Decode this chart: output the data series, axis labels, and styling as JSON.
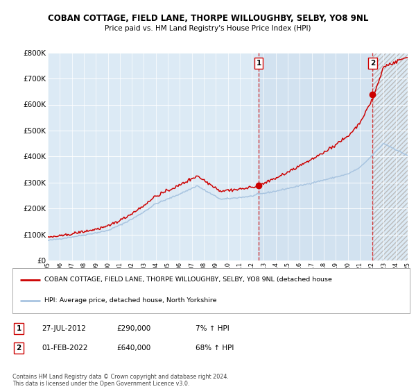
{
  "title": "COBAN COTTAGE, FIELD LANE, THORPE WILLOUGHBY, SELBY, YO8 9NL",
  "subtitle": "Price paid vs. HM Land Registry's House Price Index (HPI)",
  "x_start_year": 1995,
  "x_end_year": 2025,
  "y_min": 0,
  "y_max": 800000,
  "y_ticks": [
    0,
    100000,
    200000,
    300000,
    400000,
    500000,
    600000,
    700000,
    800000
  ],
  "y_tick_labels": [
    "£0",
    "£100K",
    "£200K",
    "£300K",
    "£400K",
    "£500K",
    "£600K",
    "£700K",
    "£800K"
  ],
  "sale1_date": "27-JUL-2012",
  "sale1_price": 290000,
  "sale1_hpi_pct": "7%",
  "sale1_x": 2012.57,
  "sale2_date": "01-FEB-2022",
  "sale2_price": 640000,
  "sale2_hpi_pct": "68%",
  "sale2_x": 2022.08,
  "hpi_line_color": "#a8c4e0",
  "price_line_color": "#cc0000",
  "dot_color": "#cc0000",
  "plot_bg": "#dceaf5",
  "grid_color": "#ffffff",
  "legend_label_red": "COBAN COTTAGE, FIELD LANE, THORPE WILLOUGHBY, SELBY, YO8 9NL (detached house",
  "legend_label_blue": "HPI: Average price, detached house, North Yorkshire",
  "footer": "Contains HM Land Registry data © Crown copyright and database right 2024.\nThis data is licensed under the Open Government Licence v3.0.",
  "shade_color": "#ccdded"
}
